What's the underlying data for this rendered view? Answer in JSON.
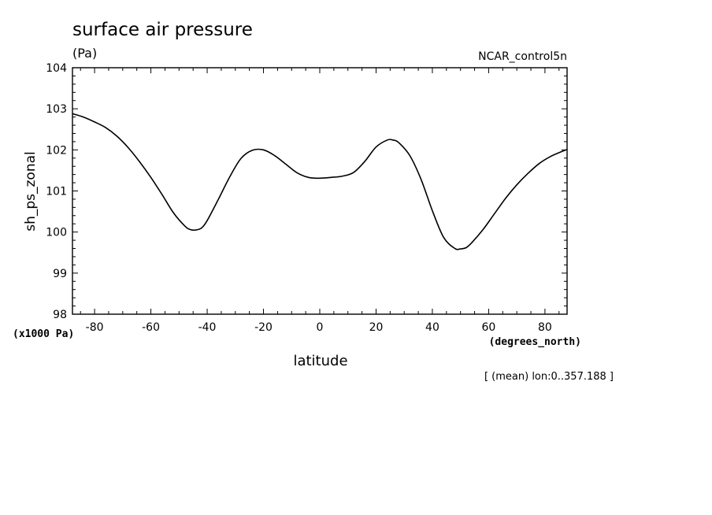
{
  "chart_data": {
    "type": "line",
    "title": "surface air pressure",
    "units": "(Pa)",
    "run_label": "NCAR_control5n",
    "ylabel": "sh_ps_zonal",
    "xlabel": "latitude",
    "y_scale_note": "(x1000 Pa)",
    "x_units": "(degrees_north)",
    "footnote": "[ (mean) lon:0..357.188 ]",
    "xlim": [
      -87.86,
      87.86
    ],
    "ylim": [
      98,
      104
    ],
    "x_ticks": [
      -80,
      -60,
      -40,
      -20,
      0,
      20,
      40,
      60,
      80
    ],
    "x_tick_labels": [
      "-80",
      "-60",
      "-40",
      "-20",
      "0",
      "20",
      "40",
      "60",
      "80"
    ],
    "y_ticks": [
      98,
      99,
      100,
      101,
      102,
      103,
      104
    ],
    "y_tick_labels": [
      "98",
      "99",
      "100",
      "101",
      "102",
      "103",
      "104"
    ],
    "grid": false,
    "series": [
      {
        "x": [
          -87.86,
          -84,
          -80,
          -76,
          -72,
          -68,
          -64,
          -60,
          -56,
          -52,
          -48,
          -46,
          -44,
          -42,
          -40,
          -36,
          -32,
          -28,
          -24,
          -20,
          -16,
          -12,
          -8,
          -4,
          0,
          4,
          8,
          12,
          16,
          20,
          24,
          26,
          28,
          32,
          36,
          40,
          44,
          48,
          50,
          52,
          54,
          58,
          62,
          66,
          70,
          74,
          78,
          82,
          86,
          87.86
        ],
        "y": [
          102.88,
          102.8,
          102.68,
          102.54,
          102.33,
          102.05,
          101.71,
          101.33,
          100.91,
          100.47,
          100.15,
          100.06,
          100.05,
          100.1,
          100.28,
          100.8,
          101.34,
          101.79,
          101.99,
          102.0,
          101.86,
          101.65,
          101.44,
          101.33,
          101.31,
          101.33,
          101.36,
          101.45,
          101.72,
          102.07,
          102.24,
          102.24,
          102.18,
          101.86,
          101.28,
          100.52,
          99.87,
          99.6,
          99.59,
          99.62,
          99.74,
          100.06,
          100.44,
          100.82,
          101.15,
          101.43,
          101.67,
          101.84,
          101.96,
          102.01
        ]
      }
    ]
  }
}
